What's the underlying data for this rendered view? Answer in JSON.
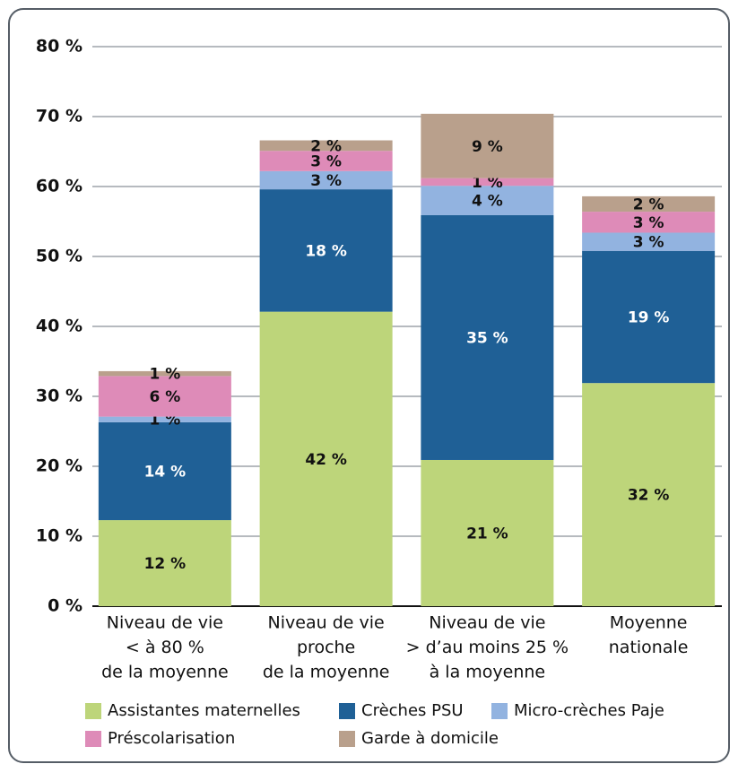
{
  "chart_data": {
    "type": "stacked_bar",
    "categories": [
      [
        "Niveau de vie",
        "< à 80 %",
        "de la moyenne"
      ],
      [
        "Niveau de vie",
        "proche",
        "de la moyenne"
      ],
      [
        "Niveau de vie",
        "> d’au moins 25 %",
        "à la moyenne"
      ],
      [
        "Moyenne",
        "nationale"
      ]
    ],
    "series": [
      {
        "name": "Assistantes maternelles",
        "color": "#bdd57a",
        "values": [
          12.3,
          42.1,
          20.9,
          31.9
        ],
        "value_labels": [
          "12 %",
          "42 %",
          "21 %",
          "32 %"
        ]
      },
      {
        "name": "Crèches PSU",
        "color": "#1f6096",
        "values": [
          14,
          17.5,
          35,
          18.9
        ],
        "value_labels": [
          "14 %",
          "18 %",
          "35 %",
          "19 %"
        ]
      },
      {
        "name": "Micro-crèches Paje",
        "color": "#92b3e0",
        "values": [
          0.8,
          2.6,
          4.2,
          2.6
        ],
        "value_labels": [
          "1 %",
          "3 %",
          "4 %",
          "3 %"
        ]
      },
      {
        "name": "Préscolarisation",
        "color": "#de8bb8",
        "values": [
          5.8,
          2.9,
          1.1,
          3.0
        ],
        "value_labels": [
          "6 %",
          "3 %",
          "1 %",
          "3 %"
        ]
      },
      {
        "name": "Garde à domicile",
        "color": "#b9a08c",
        "values": [
          0.7,
          1.5,
          9.2,
          2.2
        ],
        "value_labels": [
          "1 %",
          "2 %",
          "9 %",
          "2 %"
        ]
      }
    ],
    "ylim": [
      0,
      80
    ],
    "yticks": [
      {
        "value": 0,
        "label": "0 %"
      },
      {
        "value": 10,
        "label": "10 %"
      },
      {
        "value": 20,
        "label": "20 %"
      },
      {
        "value": 30,
        "label": "30 %"
      },
      {
        "value": 40,
        "label": "40 %"
      },
      {
        "value": 50,
        "label": "50 %"
      },
      {
        "value": 60,
        "label": "60 %"
      },
      {
        "value": 70,
        "label": "70 %"
      },
      {
        "value": 80,
        "label": "80 %"
      }
    ],
    "grid": true
  }
}
